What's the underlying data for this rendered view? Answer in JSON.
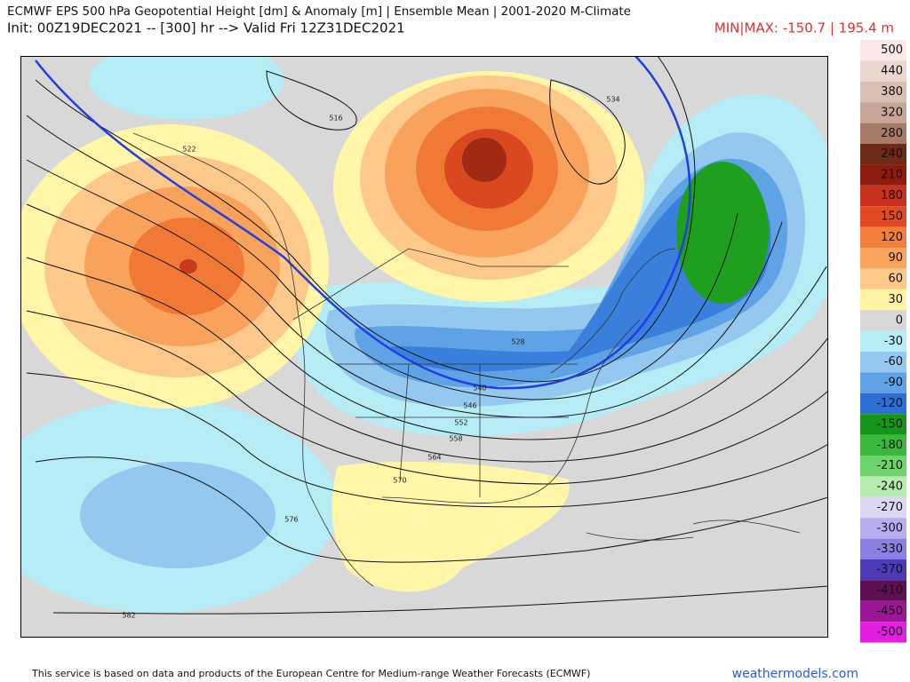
{
  "header": {
    "title": "ECMWF EPS 500 hPa Geopotential Height [dm] & Anomaly [m] | Ensemble Mean | 2001-2020 M-Climate",
    "init": "Init: 00Z19DEC2021 -- [300] hr --> Valid Fri 12Z31DEC2021",
    "minmax": "MIN|MAX: -150.7 | 195.4 m"
  },
  "colorbar": {
    "labels": [
      500,
      440,
      380,
      320,
      280,
      240,
      210,
      180,
      150,
      120,
      90,
      60,
      30,
      0,
      -30,
      -60,
      -90,
      -120,
      -150,
      -180,
      -210,
      -240,
      -270,
      -300,
      -330,
      -370,
      -410,
      -450,
      -500
    ]
  },
  "contour_labels": [
    516,
    522,
    528,
    534,
    540,
    546,
    552,
    558,
    564,
    570,
    576,
    582
  ],
  "footer": {
    "credit": "This service is based on data and products of the European Centre for Medium-range Weather Forecasts (ECMWF)",
    "site": "weathermodels.com"
  }
}
